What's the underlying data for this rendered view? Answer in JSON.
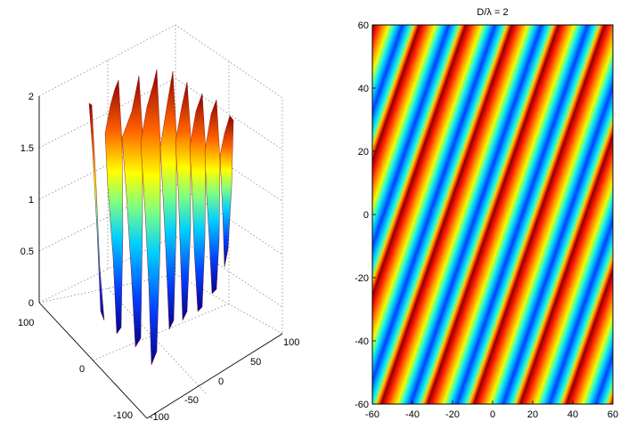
{
  "chart_data": [
    {
      "type": "surface3d",
      "title": "",
      "zticks": [
        "0",
        "0.5",
        "1",
        "1.5",
        "2"
      ],
      "xticks": [
        "-100",
        "-50",
        "0",
        "50",
        "100"
      ],
      "yticks": [
        "-100",
        "0",
        "100"
      ],
      "xlim": [
        -100,
        100
      ],
      "ylim": [
        -100,
        100
      ],
      "zlim": [
        0,
        2
      ],
      "grid": true,
      "colormap": "jet",
      "surface": {
        "extent": [
          -60,
          60
        ],
        "range": [
          0,
          2
        ]
      }
    },
    {
      "type": "heatmap",
      "title": "D/λ = 2",
      "xticks": [
        "-60",
        "-40",
        "-20",
        "0",
        "20",
        "40",
        "60"
      ],
      "yticks": [
        "60",
        "40",
        "20",
        "0",
        "-20",
        "-40",
        "-60"
      ],
      "xlim": [
        -60,
        60
      ],
      "ylim": [
        -60,
        60
      ],
      "colormap": "jet",
      "value_range": [
        0,
        2
      ],
      "pattern": "two-source interference fringes"
    }
  ]
}
